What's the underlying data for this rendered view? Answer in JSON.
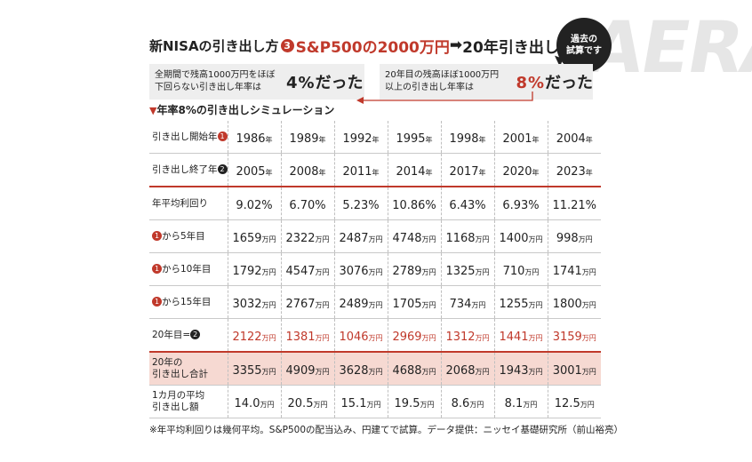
{
  "watermark": "AERA",
  "title": {
    "part1": "新NISAの引き出し方",
    "circle": "3",
    "part2": "S&P500の2000万円",
    "part3": "20年引き出し"
  },
  "bubble": "過去の\n試算です",
  "notes": {
    "left_small": "全期間で残高1000万円をほぼ\n下回らない引き出し年率は",
    "left_pct": "4%",
    "left_suffix": "だった",
    "right_small": "20年目の残高ほぼ1000万円\n以上の引き出し年率は",
    "right_pct": "8%",
    "right_suffix": "だった"
  },
  "simulation_label": "年率8%の引き出しシミュレーション",
  "unit_year": "年",
  "unit_man": "万円",
  "rows": [
    {
      "label": "引き出し開始年",
      "marker": "1",
      "marker_style": "red",
      "unit": "年",
      "values": [
        "1986",
        "1989",
        "1992",
        "1995",
        "1998",
        "2001",
        "2004"
      ]
    },
    {
      "label": "引き出し終了年",
      "marker": "2",
      "marker_style": "dark",
      "unit": "年",
      "values": [
        "2005",
        "2008",
        "2011",
        "2014",
        "2017",
        "2020",
        "2023"
      ]
    },
    {
      "label": "年平均利回り",
      "unit": "",
      "values": [
        "9.02%",
        "6.70%",
        "5.23%",
        "10.86%",
        "6.43%",
        "6.93%",
        "11.21%"
      ]
    },
    {
      "label": "から5年目",
      "prefix_marker": "1",
      "unit": "万円",
      "values": [
        "1659",
        "2322",
        "2487",
        "4748",
        "1168",
        "1400",
        "998"
      ]
    },
    {
      "label": "から10年目",
      "prefix_marker": "1",
      "unit": "万円",
      "values": [
        "1792",
        "4547",
        "3076",
        "2789",
        "1325",
        "710",
        "1741"
      ]
    },
    {
      "label": "から15年目",
      "prefix_marker": "1",
      "unit": "万円",
      "values": [
        "3032",
        "2767",
        "2489",
        "1705",
        "734",
        "1255",
        "1800"
      ]
    },
    {
      "label": "20年目=",
      "marker": "2",
      "marker_style": "dark",
      "unit": "万円",
      "values": [
        "2122",
        "1381",
        "1046",
        "2969",
        "1312",
        "1441",
        "3159"
      ]
    },
    {
      "label": "20年の\n引き出し合計",
      "unit": "万円",
      "values": [
        "3355",
        "4909",
        "3628",
        "4688",
        "2068",
        "1943",
        "3001"
      ]
    },
    {
      "label": "1カ月の平均\n引き出し額",
      "unit": "万円",
      "values": [
        "14.0",
        "20.5",
        "15.1",
        "19.5",
        "8.6",
        "8.1",
        "12.5"
      ]
    }
  ],
  "footnote": "※年平均利回りは幾何平均。S&P500の配当込み、円建てで試算。データ提供：ニッセイ基礎研究所（前山裕亮）",
  "colors": {
    "accent": "#c0392b",
    "pink": "#f6d9d2",
    "note_bg": "#eeeeee"
  }
}
